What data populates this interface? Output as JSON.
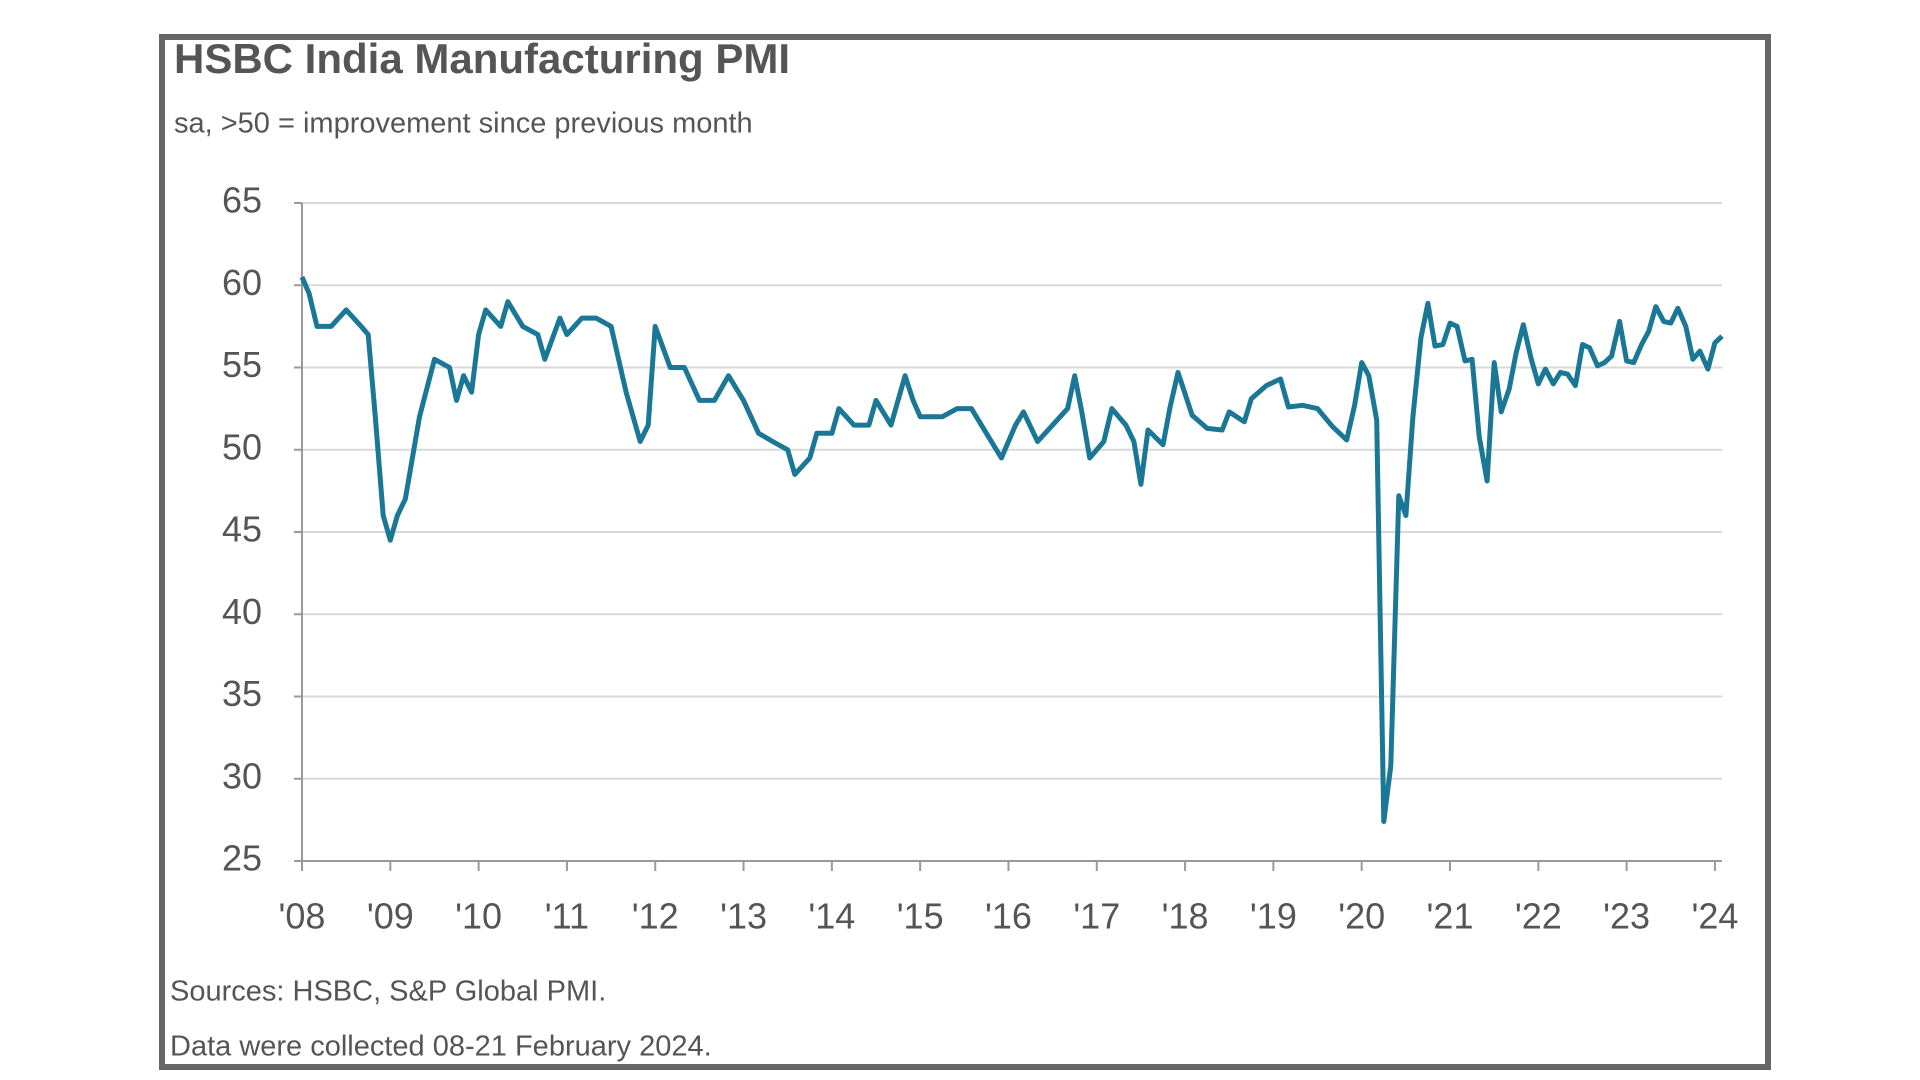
{
  "chart_data": {
    "type": "line",
    "title": "HSBC India Manufacturing PMI",
    "subtitle": "sa, >50 = improvement since previous month",
    "source": "Sources: HSBC, S&P Global PMI.",
    "note": "Data were collected 08-21 February 2024.",
    "x": [
      2008.0,
      2008.08,
      2008.17,
      2008.33,
      2008.5,
      2008.67,
      2008.75,
      2008.83,
      2008.92,
      2009.0,
      2009.08,
      2009.17,
      2009.33,
      2009.5,
      2009.67,
      2009.75,
      2009.83,
      2009.92,
      2010.0,
      2010.08,
      2010.25,
      2010.33,
      2010.5,
      2010.67,
      2010.75,
      2010.92,
      2011.0,
      2011.17,
      2011.33,
      2011.5,
      2011.67,
      2011.83,
      2011.92,
      2012.0,
      2012.17,
      2012.33,
      2012.5,
      2012.67,
      2012.83,
      2013.0,
      2013.17,
      2013.33,
      2013.5,
      2013.58,
      2013.75,
      2013.83,
      2014.0,
      2014.08,
      2014.25,
      2014.42,
      2014.5,
      2014.67,
      2014.83,
      2014.92,
      2015.0,
      2015.25,
      2015.42,
      2015.58,
      2015.75,
      2015.92,
      2016.08,
      2016.17,
      2016.33,
      2016.5,
      2016.67,
      2016.75,
      2016.83,
      2016.92,
      2017.08,
      2017.17,
      2017.33,
      2017.42,
      2017.5,
      2017.58,
      2017.75,
      2017.83,
      2017.92,
      2018.08,
      2018.25,
      2018.42,
      2018.5,
      2018.67,
      2018.75,
      2018.92,
      2019.08,
      2019.17,
      2019.33,
      2019.5,
      2019.67,
      2019.83,
      2019.92,
      2020.0,
      2020.08,
      2020.17,
      2020.25,
      2020.33,
      2020.42,
      2020.5,
      2020.58,
      2020.67,
      2020.75,
      2020.83,
      2020.92,
      2021.0,
      2021.08,
      2021.17,
      2021.25,
      2021.33,
      2021.42,
      2021.5,
      2021.58,
      2021.67,
      2021.75,
      2021.83,
      2021.92,
      2022.0,
      2022.08,
      2022.17,
      2022.25,
      2022.33,
      2022.42,
      2022.5,
      2022.58,
      2022.67,
      2022.75,
      2022.83,
      2022.92,
      2023.0,
      2023.08,
      2023.17,
      2023.25,
      2023.33,
      2023.42,
      2023.5,
      2023.58,
      2023.67,
      2023.75,
      2023.83,
      2023.92,
      2024.0,
      2024.08
    ],
    "series": [
      {
        "name": "PMI",
        "color": "#1a7896",
        "values": [
          60.5,
          59.5,
          57.5,
          57.5,
          58.5,
          57.5,
          57,
          52,
          46,
          44.5,
          46,
          47,
          52,
          55.5,
          55,
          53,
          54.5,
          53.5,
          57,
          58.5,
          57.5,
          59,
          57.5,
          57,
          55.5,
          58,
          57,
          58,
          58,
          57.5,
          53.5,
          50.5,
          51.5,
          57.5,
          55,
          55,
          53,
          53,
          54.5,
          53,
          51,
          50.5,
          50,
          48.5,
          49.5,
          51,
          51,
          52.5,
          51.5,
          51.5,
          53,
          51.5,
          54.5,
          53,
          52,
          52,
          52.5,
          52.5,
          51,
          49.5,
          51.5,
          52.3,
          50.5,
          51.5,
          52.5,
          54.5,
          52.3,
          49.5,
          50.5,
          52.5,
          51.5,
          50.5,
          47.9,
          51.2,
          50.3,
          52.6,
          54.7,
          52.1,
          51.3,
          51.2,
          52.3,
          51.7,
          53.1,
          53.9,
          54.3,
          52.6,
          52.7,
          52.5,
          51.4,
          50.6,
          52.7,
          55.3,
          54.5,
          51.8,
          27.4,
          30.8,
          47.2,
          46,
          52,
          56.8,
          58.9,
          56.3,
          56.4,
          57.7,
          57.5,
          55.4,
          55.5,
          50.8,
          48.1,
          55.3,
          52.3,
          53.7,
          55.9,
          57.6,
          55.5,
          54,
          54.9,
          54,
          54.7,
          54.6,
          53.9,
          56.4,
          56.2,
          55.1,
          55.3,
          55.7,
          57.8,
          55.4,
          55.3,
          56.4,
          57.2,
          58.7,
          57.8,
          57.7,
          58.6,
          57.5,
          55.5,
          56,
          54.9,
          56.5,
          56.9
        ]
      }
    ],
    "xlim": [
      2008,
      2024.08
    ],
    "xticks": [
      {
        "value": 2008,
        "label": "'08"
      },
      {
        "value": 2009,
        "label": "'09"
      },
      {
        "value": 2010,
        "label": "'10"
      },
      {
        "value": 2011,
        "label": "'11"
      },
      {
        "value": 2012,
        "label": "'12"
      },
      {
        "value": 2013,
        "label": "'13"
      },
      {
        "value": 2014,
        "label": "'14"
      },
      {
        "value": 2015,
        "label": "'15"
      },
      {
        "value": 2016,
        "label": "'16"
      },
      {
        "value": 2017,
        "label": "'17"
      },
      {
        "value": 2018,
        "label": "'18"
      },
      {
        "value": 2019,
        "label": "'19"
      },
      {
        "value": 2020,
        "label": "'20"
      },
      {
        "value": 2021,
        "label": "'21"
      },
      {
        "value": 2022,
        "label": "'22"
      },
      {
        "value": 2023,
        "label": "'23"
      },
      {
        "value": 2024,
        "label": "'24"
      }
    ],
    "ylim": [
      25,
      65
    ],
    "yticks": [
      25,
      30,
      35,
      40,
      45,
      50,
      55,
      60,
      65
    ],
    "grid": true
  }
}
